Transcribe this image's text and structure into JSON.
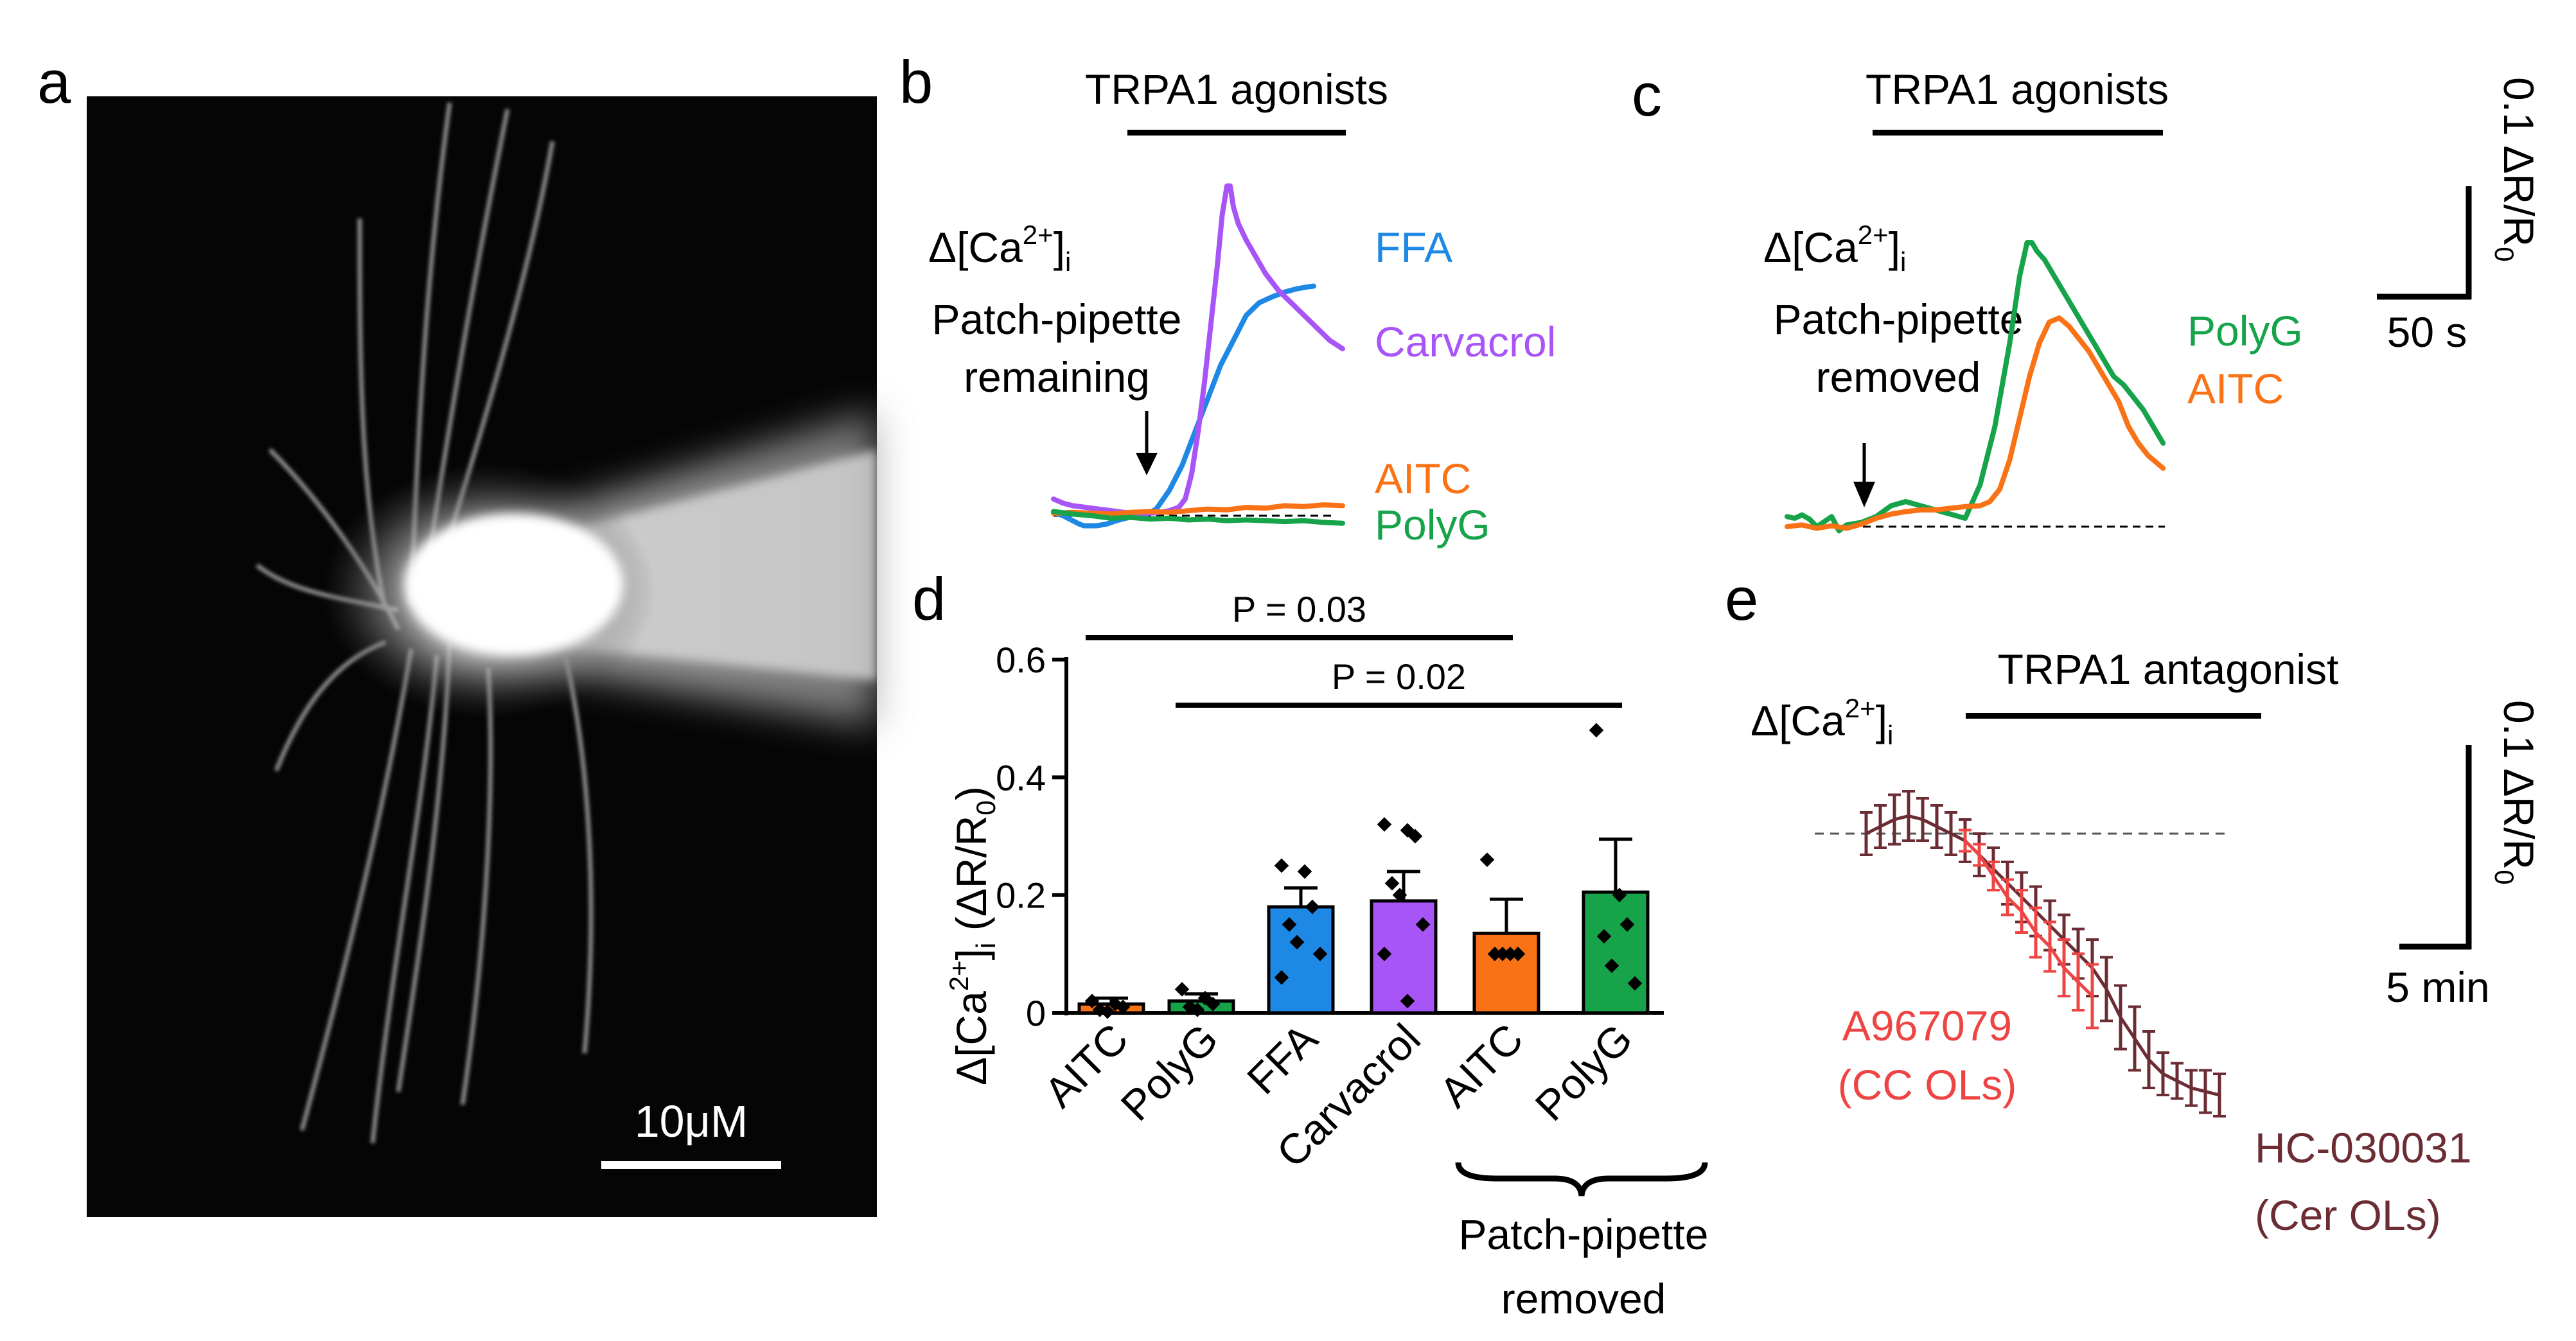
{
  "panels": {
    "a": {
      "label": "a",
      "scale_bar": "10μM"
    },
    "b": {
      "label": "b",
      "bar_label": "TRPA1 agonists",
      "ylabel": {
        "main": "Δ[Ca",
        "sup": "2+",
        "end": "]",
        "sub": "i"
      },
      "annotation": [
        "Patch-pipette",
        "remaining"
      ],
      "traces": [
        {
          "name": "FFA",
          "color": "#1e88e5",
          "x": [
            0,
            15,
            30,
            45,
            55,
            70,
            80,
            95,
            115,
            135,
            165,
            195,
            235,
            280,
            320,
            360,
            400,
            440,
            480,
            520,
            560,
            600,
            640,
            680,
            720,
            760,
            790,
            810
          ],
          "y": [
            0.004,
            0.002,
            0.0,
            -0.003,
            -0.005,
            -0.008,
            -0.01,
            -0.012,
            -0.012,
            -0.012,
            -0.01,
            -0.006,
            -0.002,
            0.0,
            0.008,
            0.03,
            0.06,
            0.1,
            0.14,
            0.18,
            0.21,
            0.24,
            0.255,
            0.262,
            0.268,
            0.272,
            0.274,
            0.275
          ]
        },
        {
          "name": "Carvacrol",
          "color": "#a855f7",
          "x": [
            0,
            30,
            60,
            100,
            140,
            180,
            220,
            260,
            300,
            330,
            360,
            390,
            410,
            430,
            450,
            470,
            490,
            510,
            525,
            540,
            550,
            560,
            575,
            600,
            630,
            660,
            700,
            740,
            780,
            820,
            860,
            900
          ],
          "y": [
            0.02,
            0.015,
            0.012,
            0.01,
            0.008,
            0.006,
            0.004,
            0.003,
            0.003,
            0.004,
            0.006,
            0.01,
            0.02,
            0.05,
            0.1,
            0.16,
            0.23,
            0.3,
            0.36,
            0.395,
            0.395,
            0.37,
            0.35,
            0.33,
            0.31,
            0.29,
            0.27,
            0.255,
            0.24,
            0.225,
            0.21,
            0.2
          ]
        },
        {
          "name": "AITC",
          "color": "#f97316",
          "x": [
            0,
            60,
            120,
            180,
            240,
            300,
            360,
            420,
            480,
            540,
            600,
            660,
            720,
            780,
            840,
            900
          ],
          "y": [
            0.003,
            0.004,
            0.003,
            0.002,
            0.004,
            0.005,
            0.004,
            0.006,
            0.008,
            0.007,
            0.01,
            0.009,
            0.012,
            0.011,
            0.013,
            0.012
          ]
        },
        {
          "name": "PolyG",
          "color": "#16a34a",
          "x": [
            0,
            60,
            120,
            180,
            240,
            300,
            360,
            420,
            480,
            540,
            600,
            660,
            720,
            780,
            840,
            900
          ],
          "y": [
            0.005,
            0.002,
            0.0,
            -0.003,
            -0.002,
            -0.004,
            -0.003,
            -0.005,
            -0.004,
            -0.006,
            -0.005,
            -0.006,
            -0.007,
            -0.006,
            -0.008,
            -0.009
          ]
        }
      ]
    },
    "c": {
      "label": "c",
      "bar_label": "TRPA1 agonists",
      "ylabel": {
        "main": "Δ[Ca",
        "sup": "2+",
        "end": "]",
        "sub": "i"
      },
      "annotation": [
        "Patch-pipette",
        "removed"
      ],
      "scale_y": "0.1 ΔR/R",
      "scale_y_sub": "0",
      "scale_x": "50 s",
      "traces": [
        {
          "name": "PolyG",
          "color": "#16a34a",
          "x": [
            0,
            15,
            30,
            45,
            60,
            75,
            90,
            105,
            120,
            150,
            180,
            210,
            240,
            270,
            300,
            330,
            360,
            390,
            420,
            450,
            470,
            485,
            495,
            505,
            520,
            540,
            560,
            580,
            600,
            620,
            640,
            660,
            680,
            700,
            720,
            740,
            760
          ],
          "y": [
            0.012,
            0.01,
            0.014,
            0.009,
            0.0,
            0.006,
            0.012,
            -0.005,
            0.002,
            0.005,
            0.012,
            0.025,
            0.03,
            0.025,
            0.02,
            0.015,
            0.01,
            0.05,
            0.12,
            0.22,
            0.3,
            0.34,
            0.34,
            0.33,
            0.32,
            0.3,
            0.28,
            0.26,
            0.24,
            0.22,
            0.2,
            0.18,
            0.17,
            0.155,
            0.14,
            0.12,
            0.1
          ]
        },
        {
          "name": "AITC",
          "color": "#f97316",
          "x": [
            0,
            30,
            60,
            90,
            120,
            150,
            180,
            210,
            240,
            270,
            300,
            330,
            360,
            390,
            410,
            430,
            450,
            470,
            490,
            510,
            530,
            550,
            570,
            590,
            610,
            630,
            650,
            670,
            690,
            710,
            730,
            760
          ],
          "y": [
            0.0,
            0.002,
            -0.002,
            0.001,
            -0.002,
            0.003,
            0.01,
            0.015,
            0.018,
            0.02,
            0.02,
            0.022,
            0.024,
            0.025,
            0.03,
            0.045,
            0.08,
            0.13,
            0.18,
            0.22,
            0.245,
            0.25,
            0.24,
            0.225,
            0.21,
            0.19,
            0.17,
            0.15,
            0.12,
            0.1,
            0.085,
            0.07
          ]
        }
      ]
    },
    "d": {
      "label": "d",
      "ylabel": {
        "main": "Δ[Ca",
        "sup": "2+",
        "end": "]",
        "sub": "i",
        "unit_main": "  (ΔR/R",
        "unit_sub": "0",
        "unit_end": ")"
      },
      "comparisons": [
        {
          "label": "P = 0.03",
          "from": 0,
          "to": 4
        },
        {
          "label": "P = 0.02",
          "from": 1,
          "to": 5
        }
      ],
      "group_label": [
        "Patch-pipette",
        "removed"
      ]
    },
    "e": {
      "label": "e",
      "bar_label": "TRPA1 antagonist",
      "ylabel": {
        "main": "Δ[Ca",
        "sup": "2+",
        "end": "]",
        "sub": "i"
      },
      "scale_y": "0.1 ΔR/R",
      "scale_y_sub": "0",
      "scale_x": "5 min",
      "labels": {
        "a967": [
          "A967079",
          "(CC OLs)"
        ],
        "hc": [
          "HC-030031",
          "(Cer OLs)"
        ]
      },
      "colors": {
        "a967": "#ef4444",
        "hc": "#6b2d33"
      }
    }
  },
  "chart_data": [
    {
      "type": "bar",
      "panel": "d",
      "categories": [
        "AITC",
        "PolyG",
        "FFA",
        "Carvacrol",
        "AITC",
        "PolyG"
      ],
      "values": [
        0.015,
        0.02,
        0.18,
        0.19,
        0.135,
        0.205
      ],
      "errors": [
        0.01,
        0.012,
        0.032,
        0.05,
        0.058,
        0.09
      ],
      "colors": [
        "#f97316",
        "#16a34a",
        "#1e88e5",
        "#a855f7",
        "#f97316",
        "#16a34a"
      ],
      "points": [
        [
          0.02,
          0.015,
          0.01,
          0.005,
          0.002
        ],
        [
          0.04,
          0.025,
          0.015,
          0.01,
          0.005
        ],
        [
          0.25,
          0.24,
          0.18,
          0.15,
          0.12,
          0.1,
          0.06
        ],
        [
          0.32,
          0.31,
          0.3,
          0.22,
          0.2,
          0.15,
          0.1,
          0.02
        ],
        [
          0.26,
          0.1,
          0.1,
          0.1,
          0.1
        ],
        [
          0.48,
          0.2,
          0.15,
          0.13,
          0.08,
          0.05
        ]
      ],
      "ylim": [
        0,
        0.6
      ],
      "yticks": [
        "0",
        "0.2",
        "0.4",
        "0.6"
      ]
    },
    {
      "type": "line",
      "panel": "e",
      "series": [
        {
          "name": "HC-030031 (Cer OLs)",
          "x": [
            0,
            1,
            2,
            3,
            4,
            5,
            6,
            7,
            8,
            9,
            10,
            11,
            12,
            13,
            14,
            15,
            16,
            17,
            18,
            19,
            20,
            21,
            22,
            23,
            24,
            25
          ],
          "values": [
            0.0,
            0.01,
            0.02,
            0.025,
            0.02,
            0.01,
            0.0,
            -0.01,
            -0.03,
            -0.05,
            -0.07,
            -0.09,
            -0.11,
            -0.13,
            -0.15,
            -0.17,
            -0.19,
            -0.22,
            -0.26,
            -0.29,
            -0.32,
            -0.34,
            -0.35,
            -0.36,
            -0.365,
            -0.37
          ],
          "errors": [
            0.03,
            0.03,
            0.035,
            0.035,
            0.03,
            0.03,
            0.03,
            0.03,
            0.03,
            0.03,
            0.03,
            0.035,
            0.035,
            0.035,
            0.035,
            0.035,
            0.04,
            0.045,
            0.045,
            0.045,
            0.04,
            0.03,
            0.025,
            0.025,
            0.03,
            0.03
          ]
        },
        {
          "name": "A967079 (CC OLs)",
          "x": [
            7,
            8,
            9,
            10,
            11,
            12,
            13,
            14,
            15,
            16
          ],
          "values": [
            -0.01,
            -0.03,
            -0.06,
            -0.09,
            -0.11,
            -0.14,
            -0.16,
            -0.19,
            -0.21,
            -0.23
          ],
          "errors": [
            0.015,
            0.015,
            0.02,
            0.025,
            0.03,
            0.035,
            0.035,
            0.04,
            0.04,
            0.045
          ]
        }
      ]
    }
  ]
}
